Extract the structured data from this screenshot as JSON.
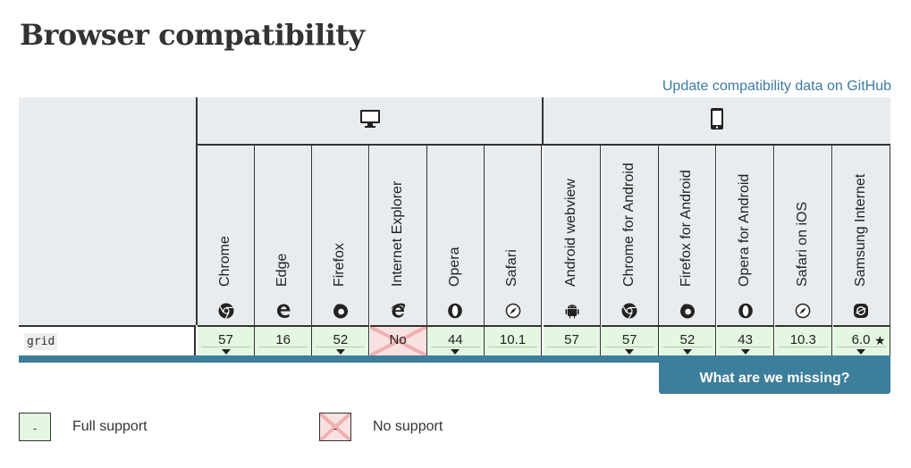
{
  "page": {
    "title": "Browser compatibility",
    "github_link": "Update compatibility data on GitHub"
  },
  "platforms": [
    {
      "name": "desktop",
      "icon": "desktop-icon"
    },
    {
      "name": "mobile",
      "icon": "mobile-icon"
    }
  ],
  "browsers": [
    {
      "name": "Chrome",
      "icon": "chrome-icon"
    },
    {
      "name": "Edge",
      "icon": "edge-icon"
    },
    {
      "name": "Firefox",
      "icon": "firefox-icon"
    },
    {
      "name": "Internet Explorer",
      "icon": "ie-icon"
    },
    {
      "name": "Opera",
      "icon": "opera-icon"
    },
    {
      "name": "Safari",
      "icon": "safari-icon"
    },
    {
      "name": "Android webview",
      "icon": "android-icon"
    },
    {
      "name": "Chrome for Android",
      "icon": "chrome-icon"
    },
    {
      "name": "Firefox for Android",
      "icon": "firefox-icon"
    },
    {
      "name": "Opera for Android",
      "icon": "opera-icon"
    },
    {
      "name": "Safari on iOS",
      "icon": "safari-icon"
    },
    {
      "name": "Samsung Internet",
      "icon": "samsung-icon"
    }
  ],
  "row": {
    "feature": "grid",
    "cells": [
      {
        "value": "57",
        "support": "full",
        "toggle": true
      },
      {
        "value": "16",
        "support": "full",
        "toggle": false
      },
      {
        "value": "52",
        "support": "full",
        "toggle": true
      },
      {
        "value": "No",
        "support": "no",
        "toggle": false
      },
      {
        "value": "44",
        "support": "full",
        "toggle": true
      },
      {
        "value": "10.1",
        "support": "full",
        "toggle": false
      },
      {
        "value": "57",
        "support": "full",
        "toggle": false
      },
      {
        "value": "57",
        "support": "full",
        "toggle": true
      },
      {
        "value": "52",
        "support": "full",
        "toggle": true
      },
      {
        "value": "43",
        "support": "full",
        "toggle": true
      },
      {
        "value": "10.3",
        "support": "full",
        "toggle": false
      },
      {
        "value": "6.0",
        "support": "full",
        "toggle": true,
        "note": "★"
      }
    ]
  },
  "missing_button": "What are we missing?",
  "legend": [
    {
      "label": "Full support",
      "type": "full",
      "marker": "-"
    },
    {
      "label": "No support",
      "type": "no",
      "marker": "-"
    }
  ],
  "colors": {
    "accent": "#3d7e9a",
    "link": "#3b7aa3",
    "full_support": "#e4f8e1",
    "no_support": "#f8e1e1",
    "header_bg": "#e8ecef"
  }
}
